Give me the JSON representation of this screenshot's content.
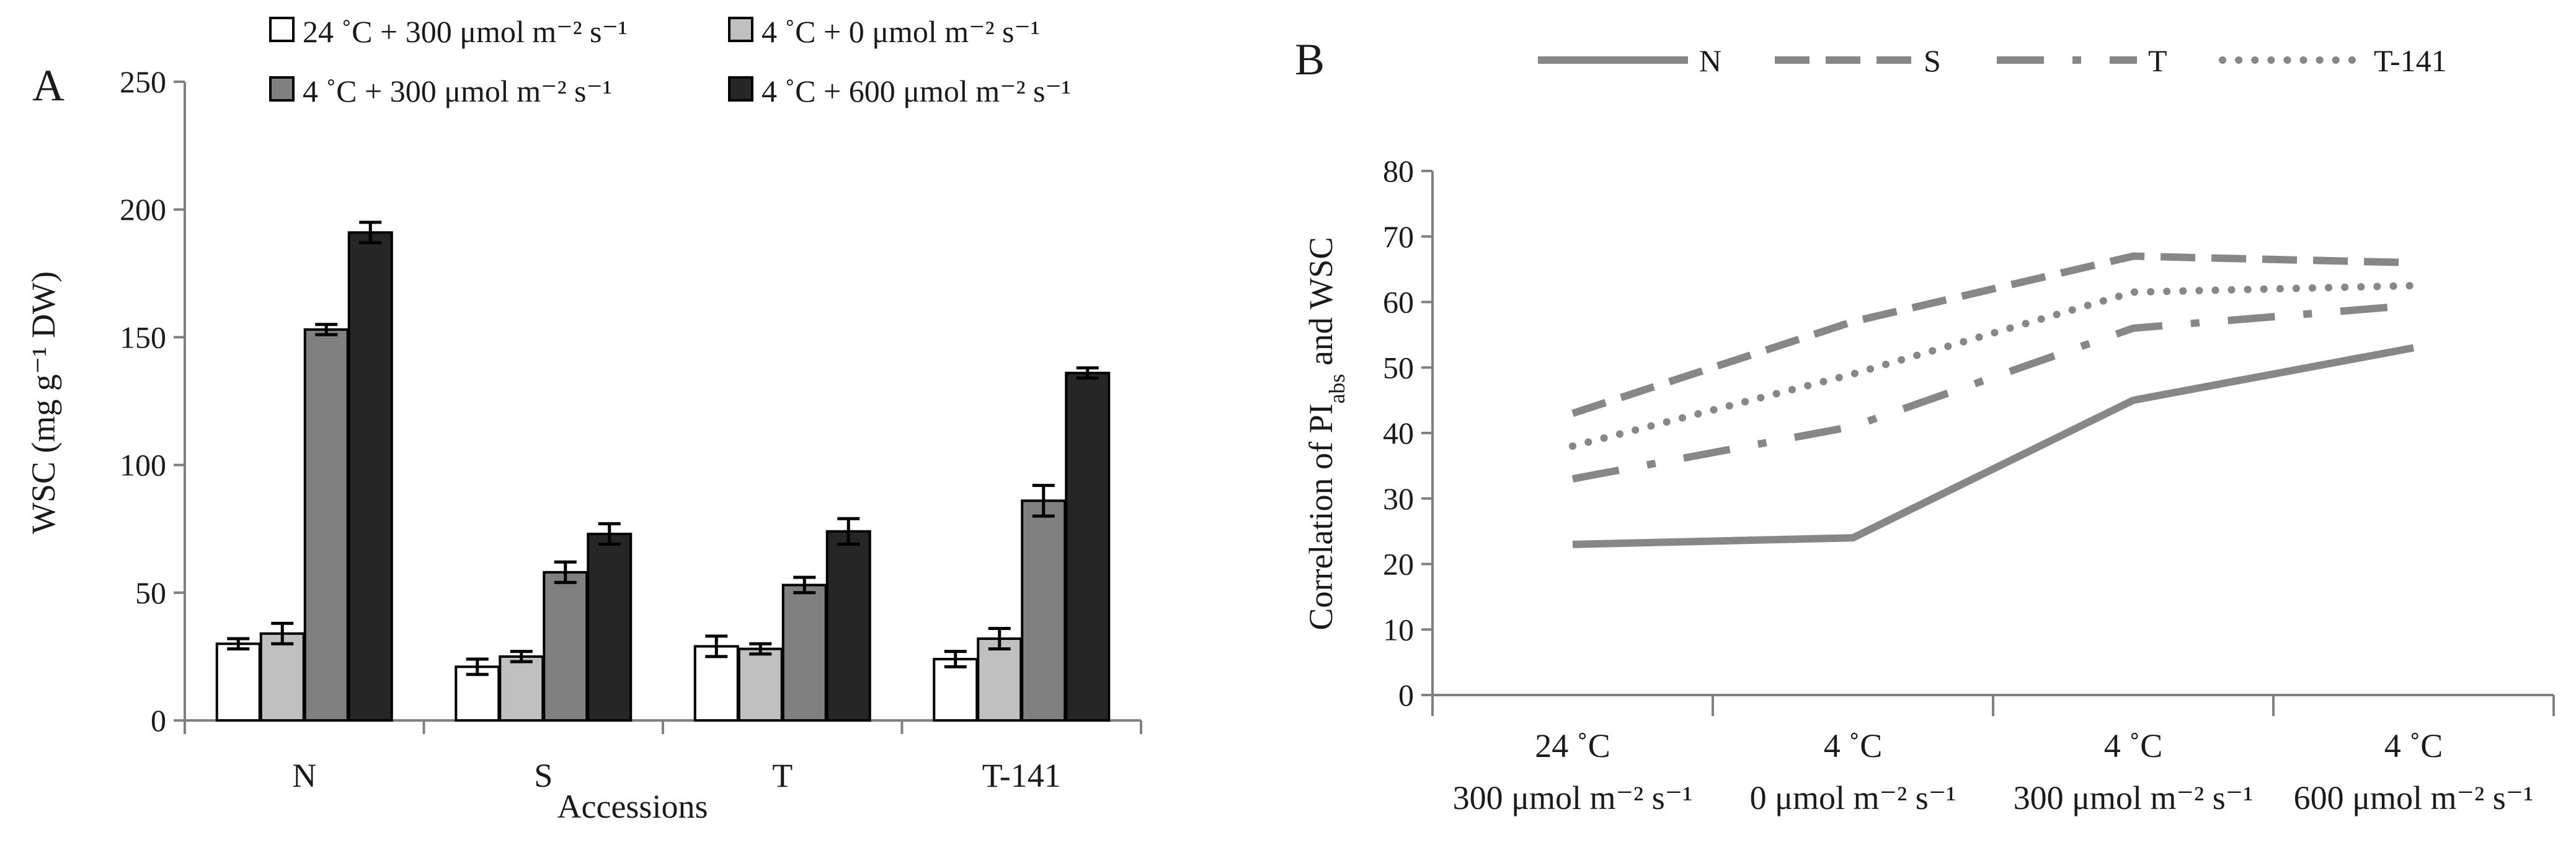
{
  "chart_data": [
    {
      "panel": "A",
      "type": "bar",
      "xlabel": "Accessions",
      "ylabel": "WSC (mg g⁻¹ DW)",
      "ylim": [
        0,
        250
      ],
      "yticks": [
        0,
        50,
        100,
        150,
        200,
        250
      ],
      "categories": [
        "N",
        "S",
        "T",
        "T-141"
      ],
      "legend_position": "top",
      "series": [
        {
          "name": "24 ˚C + 300 μmol m⁻² s⁻¹",
          "color": "#ffffff",
          "values": [
            30,
            21,
            29,
            24
          ],
          "errors": [
            2,
            3,
            4,
            3
          ]
        },
        {
          "name": "4 ˚C + 0 μmol m⁻² s⁻¹",
          "color": "#c0c0c0",
          "values": [
            34,
            25,
            28,
            32
          ],
          "errors": [
            4,
            2,
            2,
            4
          ]
        },
        {
          "name": "4 ˚C + 300 μmol m⁻² s⁻¹",
          "color": "#808080",
          "values": [
            153,
            58,
            53,
            86
          ],
          "errors": [
            2,
            4,
            3,
            6
          ]
        },
        {
          "name": "4 ˚C + 600 μmol m⁻² s⁻¹",
          "color": "#262626",
          "values": [
            191,
            73,
            74,
            136
          ],
          "errors": [
            4,
            4,
            5,
            2
          ]
        }
      ]
    },
    {
      "panel": "B",
      "type": "line",
      "ylabel_main": "Correlation of PI",
      "ylabel_sub": "abs",
      "ylabel_tail": " and WSC",
      "ylim": [
        0,
        80
      ],
      "yticks": [
        0,
        10,
        20,
        30,
        40,
        50,
        60,
        70,
        80
      ],
      "categories": [
        {
          "line1": "24 ˚C",
          "line2": "300 μmol m⁻² s⁻¹"
        },
        {
          "line1": "4 ˚C",
          "line2": "0 μmol m⁻² s⁻¹"
        },
        {
          "line1": "4 ˚C",
          "line2": "300 μmol m⁻² s⁻¹"
        },
        {
          "line1": "4 ˚C",
          "line2": "600 μmol m⁻² s⁻¹"
        }
      ],
      "legend_position": "top",
      "series": [
        {
          "name": "N",
          "style": "solid",
          "values": [
            23,
            24,
            45,
            53
          ]
        },
        {
          "name": "S",
          "style": "dashed",
          "values": [
            43,
            57,
            67,
            66
          ]
        },
        {
          "name": "T",
          "style": "dash-dot",
          "values": [
            33,
            41,
            56,
            59.5
          ]
        },
        {
          "name": "T-141",
          "style": "dotted",
          "values": [
            38,
            49,
            61.5,
            62.5
          ]
        }
      ]
    }
  ]
}
